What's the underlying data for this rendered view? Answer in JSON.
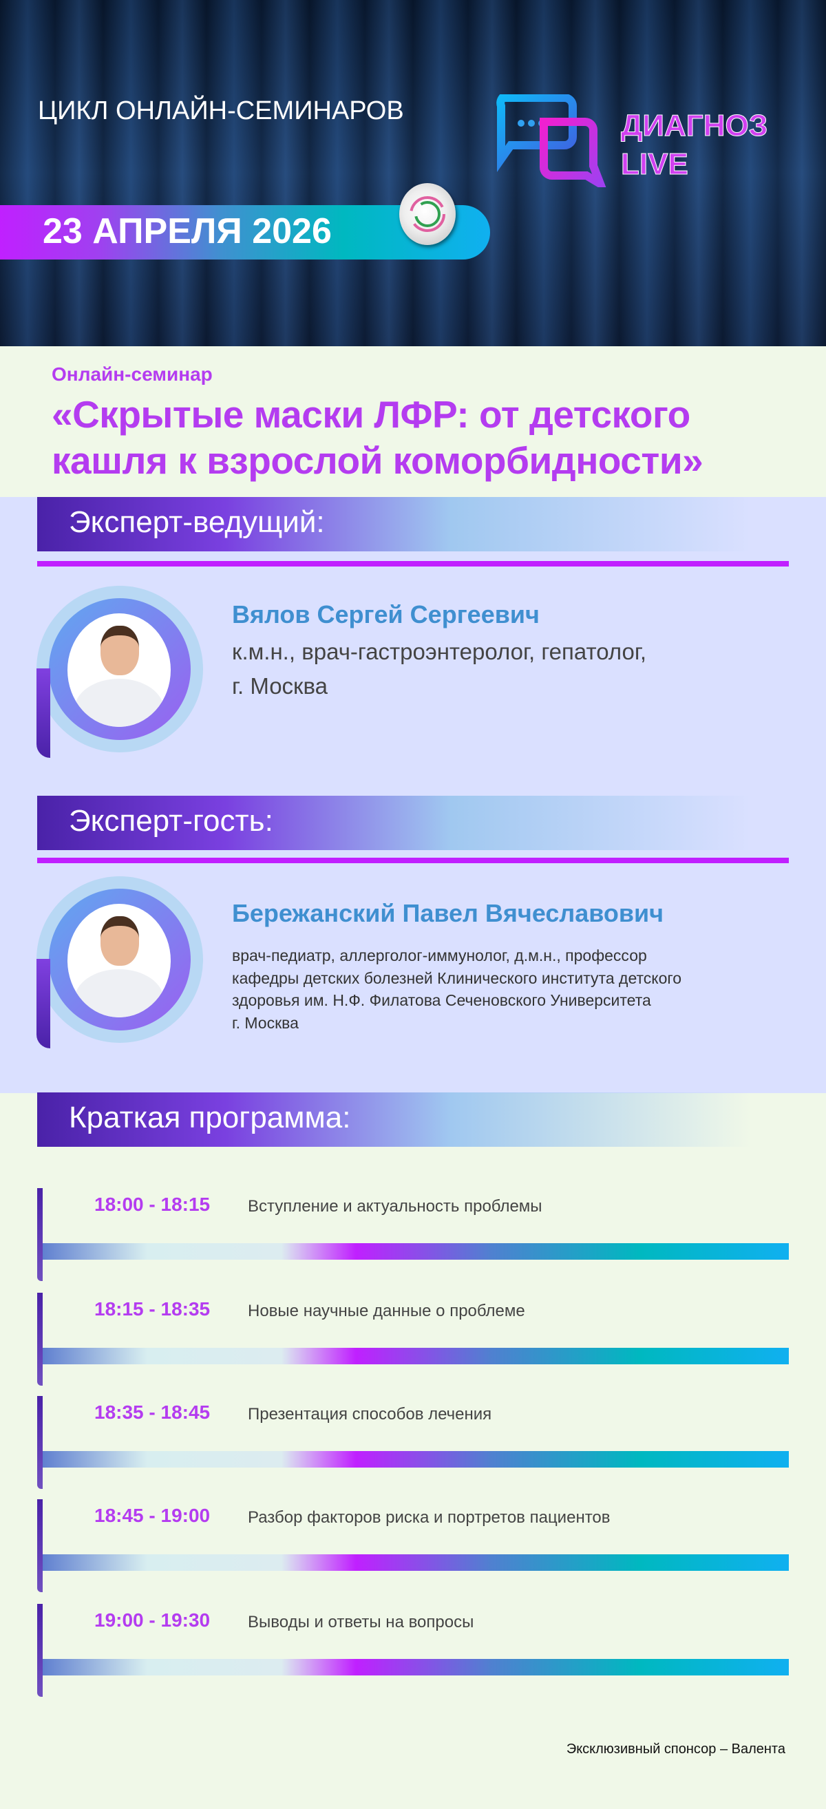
{
  "header": {
    "series": "ЦИКЛ ОНЛАЙН-СЕМИНАРОВ",
    "date": "23 АПРЕЛЯ 2026",
    "logo": {
      "line1": "ДИАГНОЗ",
      "line2": "LIVE"
    }
  },
  "seminar": {
    "label": "Онлайн-семинар",
    "title_line1": "«Скрытые маски ЛФР: от детского",
    "title_line2": "кашля к взрослой коморбидности»"
  },
  "host": {
    "heading": "Эксперт-ведущий:",
    "name": "Вялов Сергей Сергеевич",
    "role_line1": "к.м.н., врач-гастроэнтеролог, гепатолог,",
    "role_line2": "г. Москва"
  },
  "guest": {
    "heading": "Эксперт-гость:",
    "name": "Бережанский Павел Вячеславович",
    "desc": [
      "врач-педиатр, аллерголог-иммунолог, д.м.н., профессор",
      "кафедры детских болезней Клинического института детского",
      "здоровья им. Н.Ф. Филатова Сеченовского Университета",
      "г. Москва"
    ]
  },
  "program": {
    "heading": "Краткая программа:",
    "items": [
      {
        "time": "18:00 - 18:15",
        "text": "Вступление и актуальность проблемы"
      },
      {
        "time": "18:15 - 18:35",
        "text": "Новые научные данные о проблеме"
      },
      {
        "time": "18:35 - 18:45",
        "text": "Презентация способов лечения"
      },
      {
        "time": "18:45 - 19:00",
        "text": "Разбор факторов риска и портретов пациентов"
      },
      {
        "time": "19:00 - 19:30",
        "text": "Выводы и ответы на вопросы"
      }
    ]
  },
  "footer": {
    "sponsor": "Эксклюзивный спонсор – Валента"
  },
  "colors": {
    "accent": "#b43cf0",
    "line": "#c020ff",
    "name": "#3f8fd0",
    "lavender": "#dae0ff",
    "green_bg": "#f0f8e8"
  }
}
